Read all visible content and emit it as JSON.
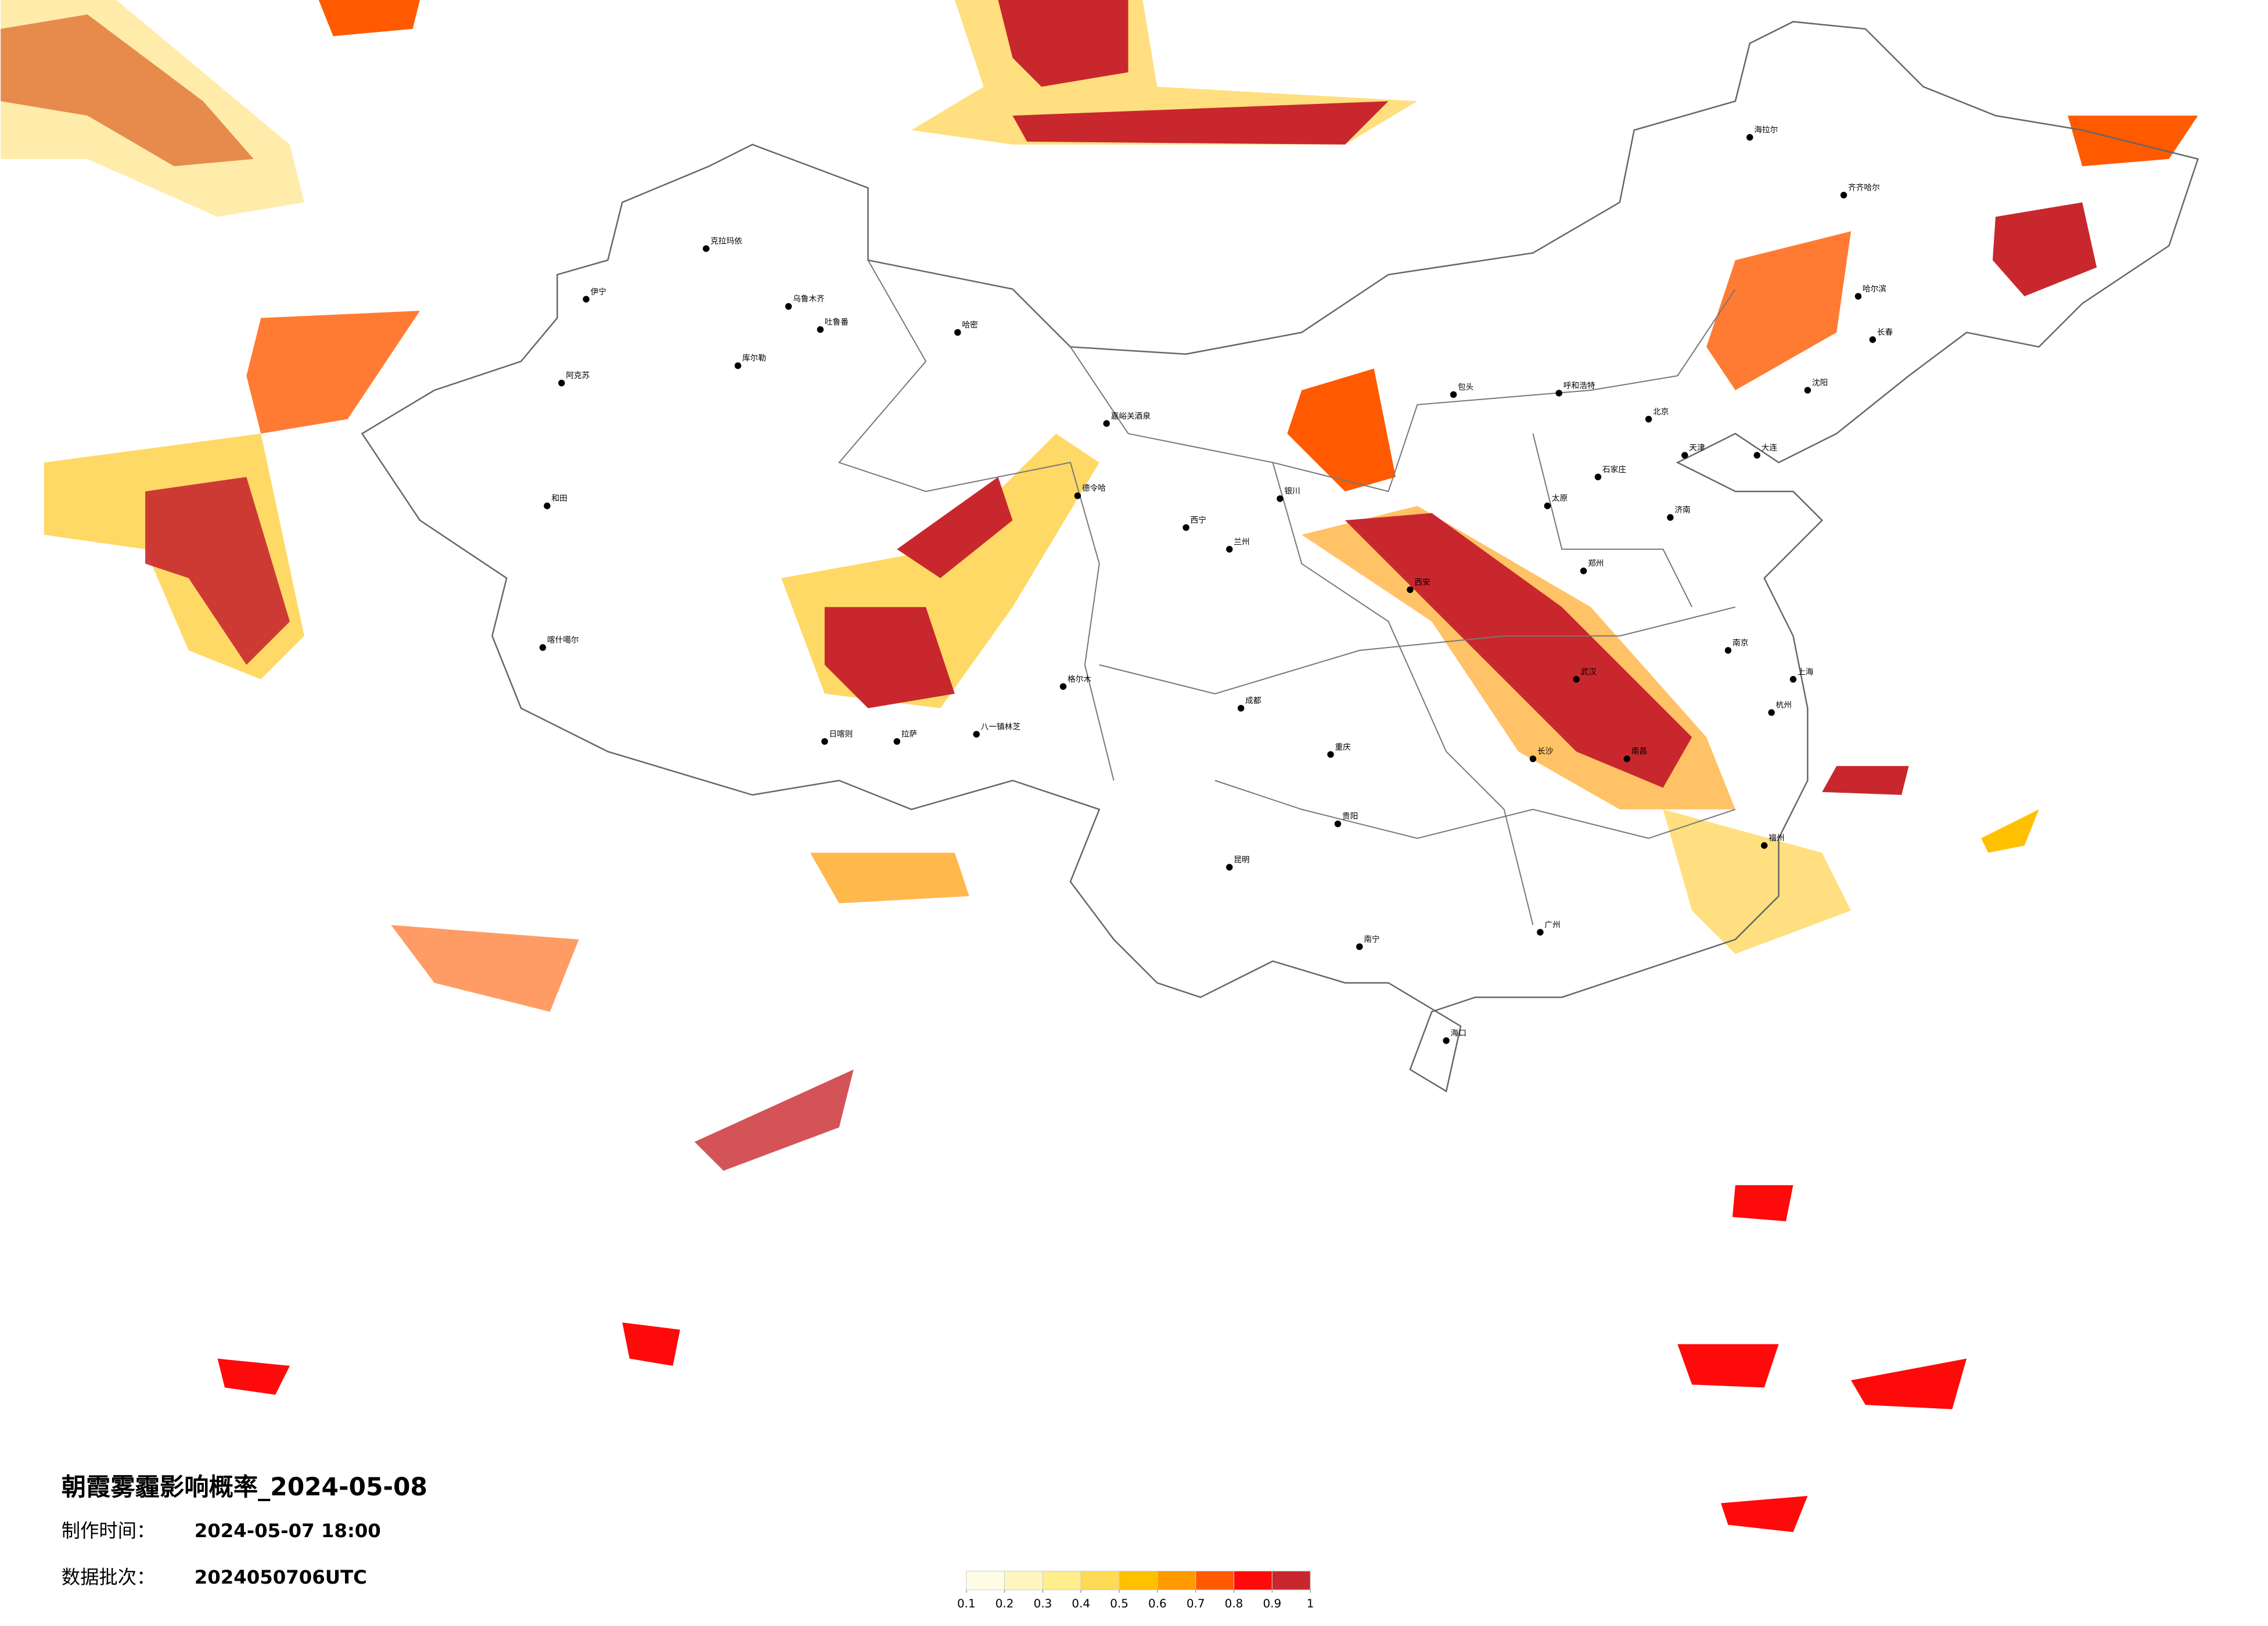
{
  "title": "朝霞雾霾影响概率_2024-05-08",
  "made": {
    "label": "制作时间：",
    "value": "2024-05-07 18:00"
  },
  "batch": {
    "label": "数据批次：",
    "value": "2024050706UTC"
  },
  "legend": {
    "ticks": [
      0.1,
      0.2,
      0.3,
      0.4,
      0.5,
      0.6,
      0.7,
      0.8,
      0.9,
      1
    ],
    "colors": [
      "#fffce6",
      "#fff6bf",
      "#ffee8c",
      "#ffda55",
      "#ffc000",
      "#ff9a00",
      "#ff5a00",
      "#ff0a0a",
      "#c8282d"
    ]
  },
  "cities": [
    "克拉玛依",
    "乌鲁木齐",
    "吐鲁番",
    "哈密",
    "库尔勒",
    "阿克苏",
    "和田",
    "喀什噶尔",
    "伊宁",
    "嘉峪关酒泉",
    "德令哈",
    "格尔木",
    "日喀则",
    "拉萨",
    "八一镇林芝",
    "西宁",
    "兰州",
    "银川",
    "呼和浩特",
    "包头",
    "北京",
    "天津",
    "石家庄",
    "太原",
    "济南",
    "郑州",
    "西安",
    "成都",
    "重庆",
    "武汉",
    "南京",
    "上海",
    "杭州",
    "长沙",
    "南昌",
    "福州",
    "广州",
    "南宁",
    "贵阳",
    "昆明",
    "海口",
    "哈尔滨",
    "长春",
    "沈阳",
    "大连",
    "海拉尔",
    "齐齐哈尔"
  ]
}
